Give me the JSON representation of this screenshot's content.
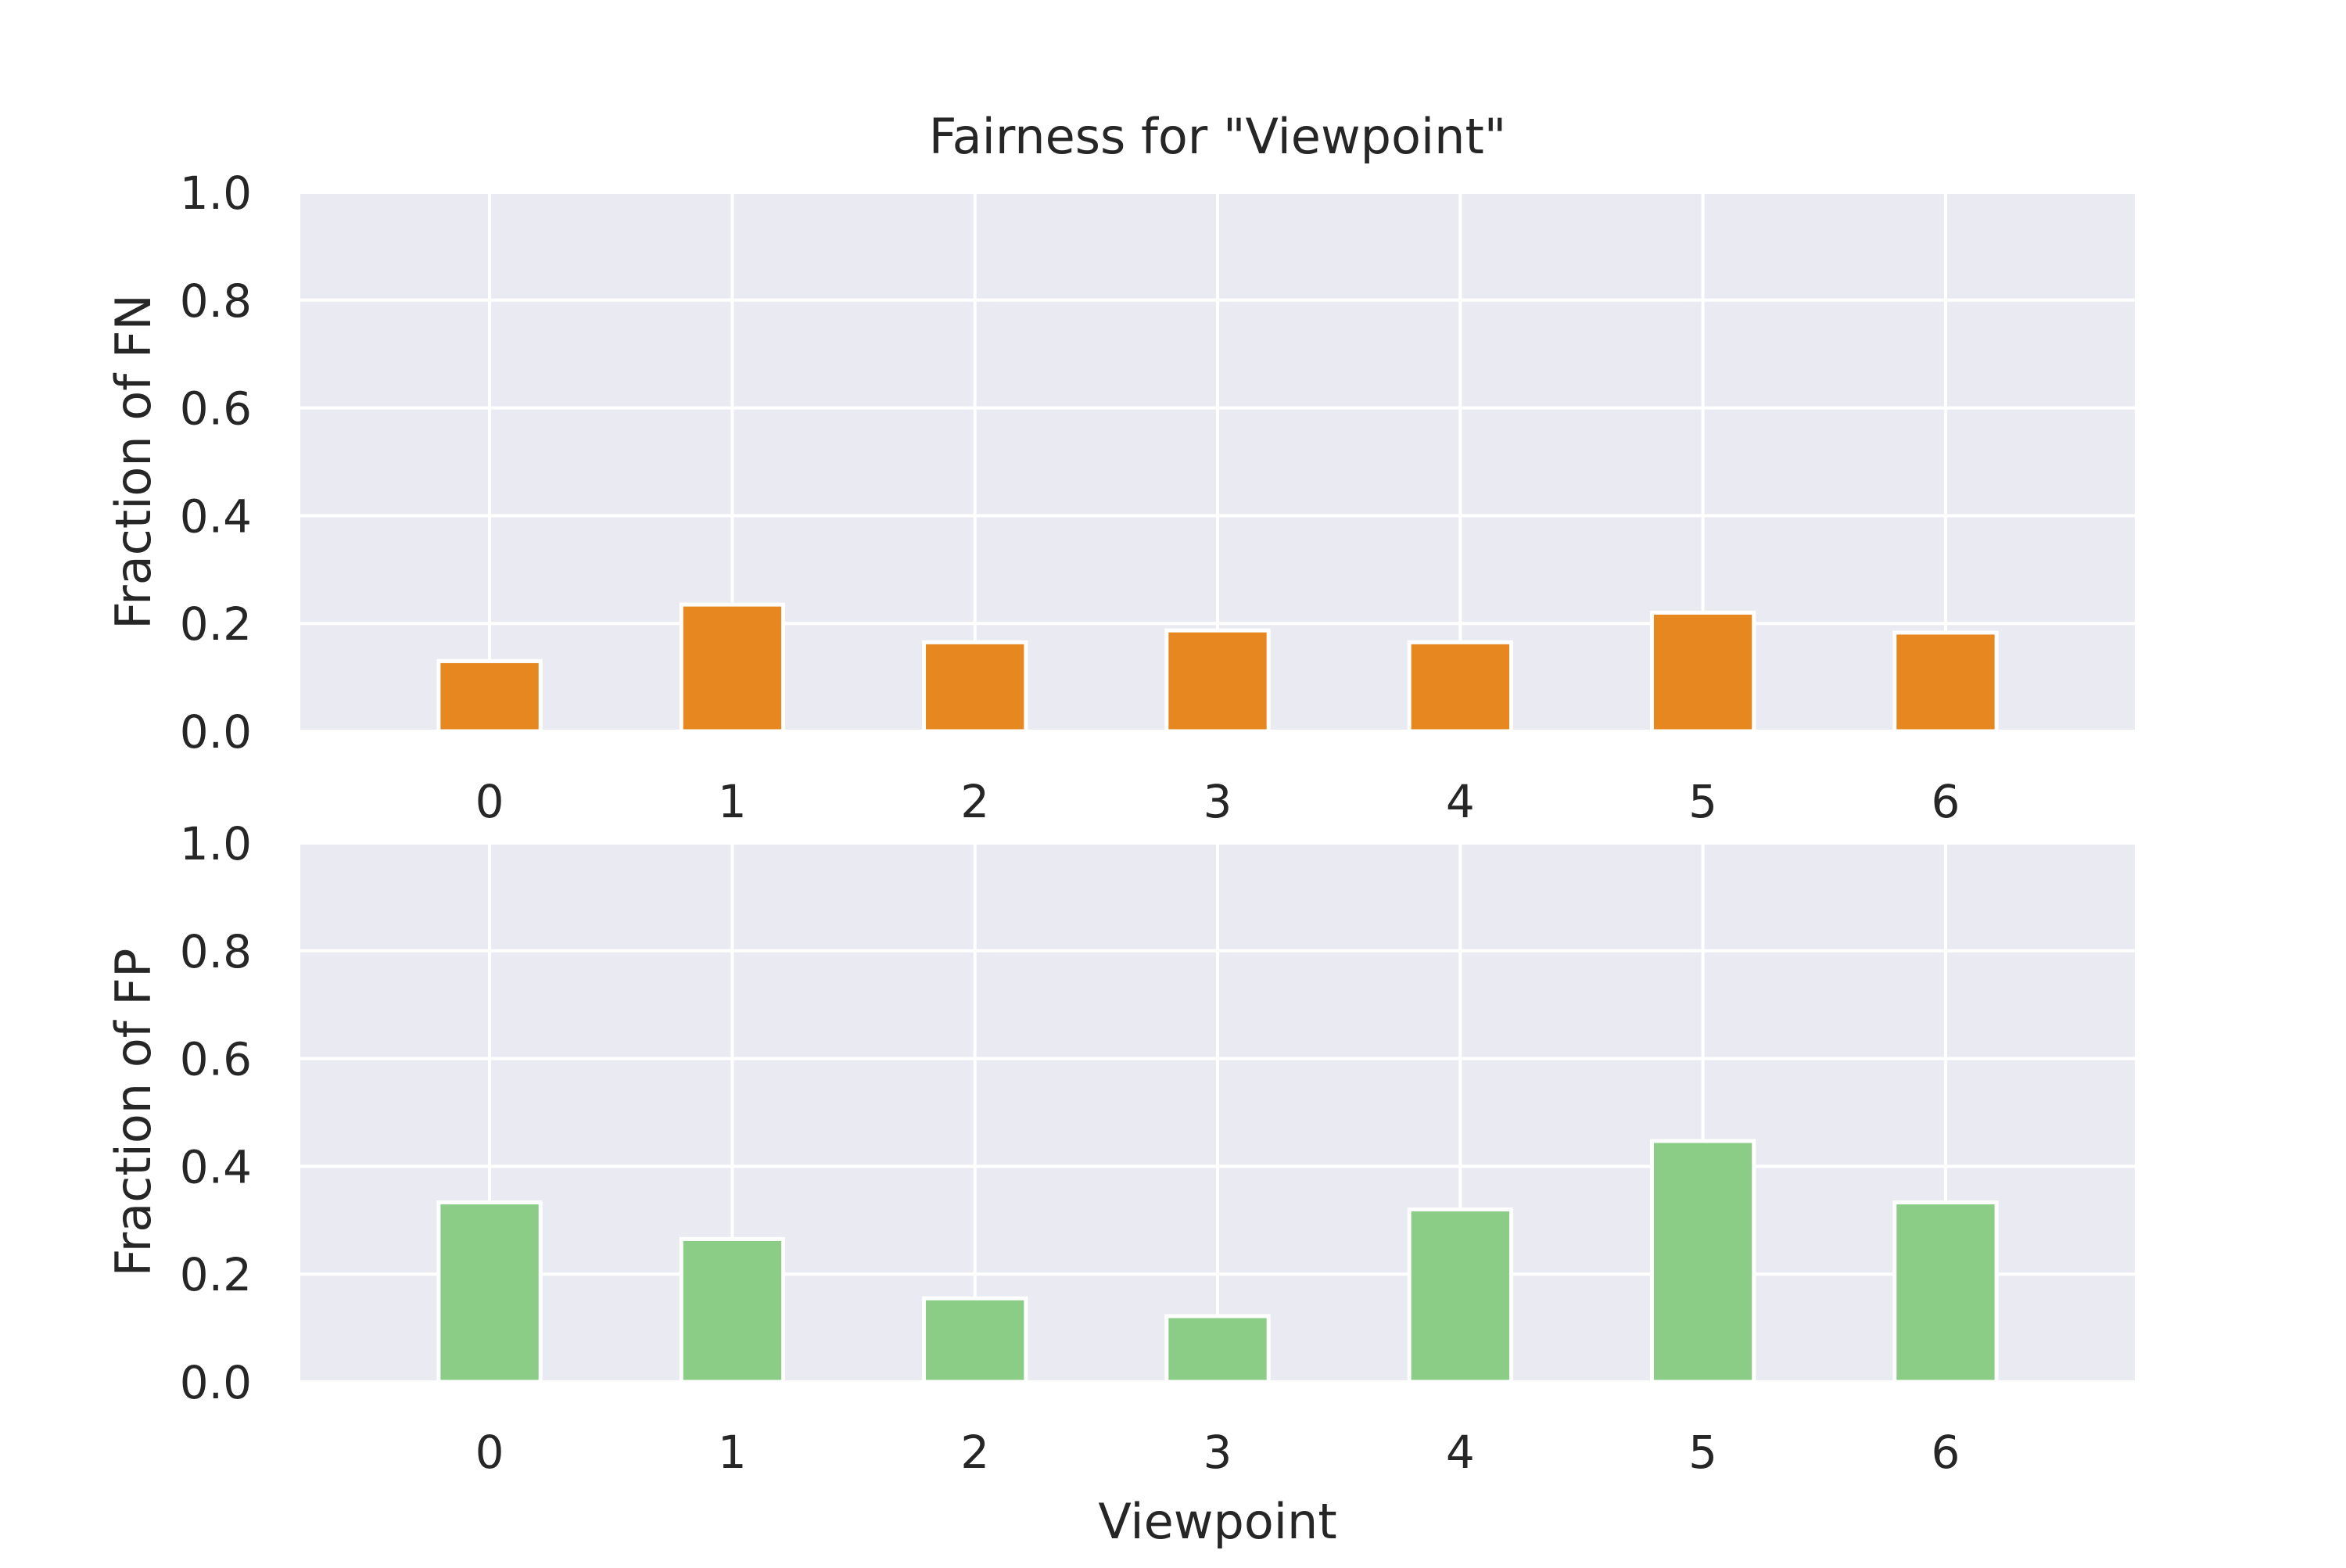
{
  "figure": {
    "title": "Fairness for \"Viewpoint\"",
    "background": "#ffffff",
    "plot_background": "#eaeaf2",
    "grid_color": "#ffffff",
    "text_color": "#262626"
  },
  "chart_data": [
    {
      "type": "bar",
      "title": "Fairness for \"Viewpoint\"",
      "xlabel": "",
      "ylabel": "Fraction of FN",
      "categories": [
        "0",
        "1",
        "2",
        "3",
        "4",
        "5",
        "6"
      ],
      "values": [
        0.13,
        0.235,
        0.165,
        0.187,
        0.165,
        0.22,
        0.183
      ],
      "ylim": [
        0,
        1.0
      ],
      "yticks": [
        "0.0",
        "0.2",
        "0.4",
        "0.6",
        "0.8",
        "1.0"
      ],
      "color": "#e6871f",
      "grid": true
    },
    {
      "type": "bar",
      "title": "",
      "xlabel": "Viewpoint",
      "ylabel": "Fraction of FP",
      "categories": [
        "0",
        "1",
        "2",
        "3",
        "4",
        "5",
        "6"
      ],
      "values": [
        0.333,
        0.265,
        0.155,
        0.122,
        0.32,
        0.447,
        0.333
      ],
      "ylim": [
        0,
        1.0
      ],
      "yticks": [
        "0.0",
        "0.2",
        "0.4",
        "0.6",
        "0.8",
        "1.0"
      ],
      "color": "#8bcc87",
      "grid": true
    }
  ]
}
